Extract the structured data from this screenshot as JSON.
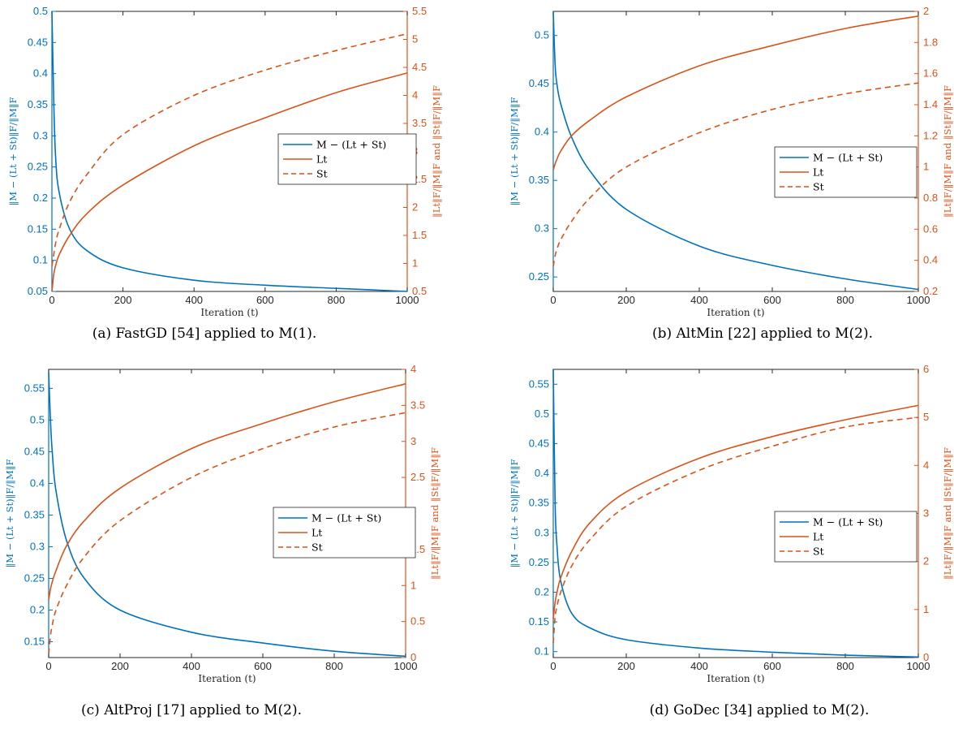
{
  "colors": {
    "blue": "#0072BD",
    "orange": "#D95319",
    "axis": "#262626"
  },
  "chart_data": [
    {
      "type": "line",
      "caption": "(a) FastGD [54] applied to M(1).",
      "xlabel": "Iteration (t)",
      "ylabel_left": "‖M − (Lt + St)‖F/‖M‖F",
      "ylabel_right": "‖Lt‖F/‖M‖F and ‖St‖F/‖M‖F",
      "xlim": [
        0,
        1000
      ],
      "xticks": [
        0,
        200,
        400,
        600,
        800,
        1000
      ],
      "ylim_left": [
        0.05,
        0.5
      ],
      "yticks_left": [
        0.05,
        0.1,
        0.15,
        0.2,
        0.25,
        0.3,
        0.35,
        0.4,
        0.45,
        0.5
      ],
      "ytick_labels_left": [
        "0.05",
        "0.1",
        "0.15",
        "0.2",
        "0.25",
        "0.3",
        "0.35",
        "0.4",
        "0.45",
        "0.5"
      ],
      "ylim_right": [
        0.5,
        5.5
      ],
      "yticks_right": [
        0.5,
        1,
        1.5,
        2,
        2.5,
        3,
        3.5,
        4,
        4.5,
        5,
        5.5
      ],
      "ytick_labels_right": [
        "0.5",
        "1",
        "1.5",
        "2",
        "2.5",
        "3",
        "3.5",
        "4",
        "4.5",
        "5",
        "5.5"
      ],
      "legend": [
        "M − (Lt + St)",
        "Lt",
        "St"
      ],
      "x": [
        0,
        5,
        10,
        20,
        50,
        100,
        200,
        400,
        600,
        800,
        1000
      ],
      "series": [
        {
          "name": "M − (Lt + St)",
          "axis": "left",
          "style": "solid",
          "values": [
            0.5,
            0.36,
            0.27,
            0.21,
            0.15,
            0.115,
            0.088,
            0.068,
            0.06,
            0.055,
            0.05
          ]
        },
        {
          "name": "Lt",
          "axis": "right",
          "style": "solid",
          "values": [
            0.5,
            0.8,
            0.95,
            1.15,
            1.5,
            1.9,
            2.4,
            3.1,
            3.6,
            4.05,
            4.4
          ]
        },
        {
          "name": "St",
          "axis": "right",
          "style": "dashed",
          "values": [
            0.95,
            1.15,
            1.35,
            1.6,
            2.1,
            2.6,
            3.3,
            4.0,
            4.45,
            4.8,
            5.1
          ]
        }
      ]
    },
    {
      "type": "line",
      "caption": "(b) AltMin [22] applied to M(2).",
      "xlabel": "Iteration (t)",
      "ylabel_left": "‖M − (Lt + St)‖F/‖M‖F",
      "ylabel_right": "‖Lt‖F/‖M‖F and ‖St‖F/‖M‖F",
      "xlim": [
        0,
        1000
      ],
      "xticks": [
        0,
        200,
        400,
        600,
        800,
        1000
      ],
      "ylim_left": [
        0.235,
        0.525
      ],
      "yticks_left": [
        0.25,
        0.3,
        0.35,
        0.4,
        0.45,
        0.5
      ],
      "ytick_labels_left": [
        "0.25",
        "0.3",
        "0.35",
        "0.4",
        "0.45",
        "0.5"
      ],
      "ylim_right": [
        0.2,
        2.0
      ],
      "yticks_right": [
        0.2,
        0.4,
        0.6,
        0.8,
        1.0,
        1.2,
        1.4,
        1.6,
        1.8,
        2.0
      ],
      "ytick_labels_right": [
        "0.2",
        "0.4",
        "0.6",
        "0.8",
        "1",
        "1.2",
        "1.4",
        "1.6",
        "1.8",
        "2"
      ],
      "legend": [
        "M − (Lt + St)",
        "Lt",
        "St"
      ],
      "x": [
        0,
        5,
        10,
        20,
        50,
        100,
        200,
        400,
        600,
        800,
        1000
      ],
      "series": [
        {
          "name": "M − (Lt + St)",
          "axis": "left",
          "style": "solid",
          "values": [
            0.525,
            0.47,
            0.45,
            0.43,
            0.395,
            0.36,
            0.32,
            0.282,
            0.262,
            0.248,
            0.237
          ]
        },
        {
          "name": "Lt",
          "axis": "right",
          "style": "solid",
          "values": [
            0.98,
            1.02,
            1.05,
            1.1,
            1.2,
            1.3,
            1.45,
            1.65,
            1.78,
            1.89,
            1.97
          ]
        },
        {
          "name": "St",
          "axis": "right",
          "style": "dashed",
          "values": [
            0.36,
            0.43,
            0.47,
            0.53,
            0.65,
            0.8,
            1.0,
            1.22,
            1.37,
            1.47,
            1.54
          ]
        }
      ]
    },
    {
      "type": "line",
      "caption": "(c) AltProj [17] applied to M(2).",
      "xlabel": "Iteration (t)",
      "ylabel_left": "‖M − (Lt + St)‖F/‖M‖F",
      "ylabel_right": "‖Lt‖F/‖M‖F and ‖St‖F/‖M‖F",
      "xlim": [
        0,
        1000
      ],
      "xticks": [
        0,
        200,
        400,
        600,
        800,
        1000
      ],
      "ylim_left": [
        0.125,
        0.58
      ],
      "yticks_left": [
        0.15,
        0.2,
        0.25,
        0.3,
        0.35,
        0.4,
        0.45,
        0.5,
        0.55
      ],
      "ytick_labels_left": [
        "0.15",
        "0.2",
        "0.25",
        "0.3",
        "0.35",
        "0.4",
        "0.45",
        "0.5",
        "0.55"
      ],
      "ylim_right": [
        0,
        4
      ],
      "yticks_right": [
        0,
        0.5,
        1,
        1.5,
        2,
        2.5,
        3,
        3.5,
        4
      ],
      "ytick_labels_right": [
        "0",
        "0.5",
        "1",
        "1.5",
        "2",
        "2.5",
        "3",
        "3.5",
        "4"
      ],
      "legend": [
        "M − (Lt + St)",
        "Lt",
        "St"
      ],
      "x": [
        0,
        5,
        10,
        20,
        50,
        100,
        200,
        400,
        600,
        800,
        1000
      ],
      "series": [
        {
          "name": "M − (Lt + St)",
          "axis": "left",
          "style": "solid",
          "values": [
            0.575,
            0.5,
            0.45,
            0.39,
            0.31,
            0.25,
            0.2,
            0.165,
            0.148,
            0.135,
            0.127
          ]
        },
        {
          "name": "Lt",
          "axis": "right",
          "style": "solid",
          "values": [
            0.8,
            0.95,
            1.05,
            1.2,
            1.55,
            1.9,
            2.35,
            2.9,
            3.25,
            3.55,
            3.8
          ]
        },
        {
          "name": "St",
          "axis": "right",
          "style": "dashed",
          "values": [
            0.05,
            0.3,
            0.45,
            0.65,
            1.0,
            1.4,
            1.9,
            2.5,
            2.9,
            3.2,
            3.4
          ]
        }
      ]
    },
    {
      "type": "line",
      "caption": "(d) GoDec [34] applied to M(2).",
      "xlabel": "Iteration (t)",
      "ylabel_left": "‖M − (Lt + St)‖F/‖M‖F",
      "ylabel_right": "‖Lt‖F/‖M‖F and ‖St‖F/‖M‖F",
      "xlim": [
        0,
        1000
      ],
      "xticks": [
        0,
        200,
        400,
        600,
        800,
        1000
      ],
      "ylim_left": [
        0.09,
        0.575
      ],
      "yticks_left": [
        0.1,
        0.15,
        0.2,
        0.25,
        0.3,
        0.35,
        0.4,
        0.45,
        0.5,
        0.55
      ],
      "ytick_labels_left": [
        "0.1",
        "0.15",
        "0.2",
        "0.25",
        "0.3",
        "0.35",
        "0.4",
        "0.45",
        "0.5",
        "0.55"
      ],
      "ylim_right": [
        0,
        6
      ],
      "yticks_right": [
        0,
        1,
        2,
        3,
        4,
        5,
        6
      ],
      "ytick_labels_right": [
        "0",
        "1",
        "2",
        "3",
        "4",
        "5",
        "6"
      ],
      "legend": [
        "M − (Lt + St)",
        "Lt",
        "St"
      ],
      "x": [
        0,
        5,
        10,
        20,
        50,
        100,
        200,
        400,
        600,
        800,
        1000
      ],
      "series": [
        {
          "name": "M − (Lt + St)",
          "axis": "left",
          "style": "solid",
          "values": [
            0.575,
            0.35,
            0.28,
            0.22,
            0.165,
            0.14,
            0.12,
            0.106,
            0.099,
            0.094,
            0.091
          ]
        },
        {
          "name": "Lt",
          "axis": "right",
          "style": "solid",
          "values": [
            0.8,
            1.15,
            1.35,
            1.65,
            2.2,
            2.8,
            3.45,
            4.15,
            4.6,
            4.95,
            5.25
          ]
        },
        {
          "name": "St",
          "axis": "right",
          "style": "dashed",
          "values": [
            0.3,
            0.85,
            1.05,
            1.35,
            1.9,
            2.45,
            3.15,
            3.9,
            4.4,
            4.8,
            5.0
          ]
        }
      ]
    }
  ]
}
